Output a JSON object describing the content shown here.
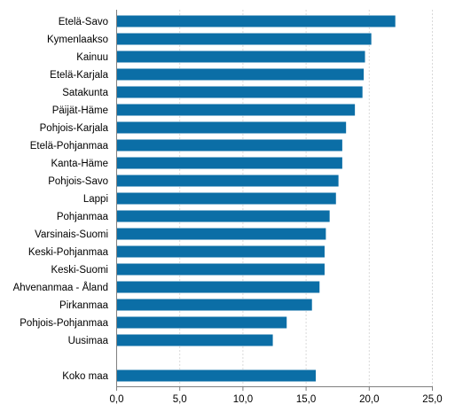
{
  "chart_data": {
    "type": "bar",
    "orientation": "horizontal",
    "categories": [
      "Etelä-Savo",
      "Kymenlaakso",
      "Kainuu",
      "Etelä-Karjala",
      "Satakunta",
      "Päijät-Häme",
      "Pohjois-Karjala",
      "Etelä-Pohjanmaa",
      "Kanta-Häme",
      "Pohjois-Savo",
      "Lappi",
      "Pohjanmaa",
      "Varsinais-Suomi",
      "Keski-Pohjanmaa",
      "Keski-Suomi",
      "Ahvenanmaa - Åland",
      "Pirkanmaa",
      "Pohjois-Pohjanmaa",
      "Uusimaa",
      "",
      "Koko maa"
    ],
    "values": [
      22.1,
      20.2,
      19.7,
      19.6,
      19.5,
      18.9,
      18.2,
      17.9,
      17.9,
      17.6,
      17.4,
      16.9,
      16.6,
      16.5,
      16.5,
      16.1,
      15.5,
      13.5,
      12.4,
      null,
      15.8
    ],
    "xlim": [
      0,
      25
    ],
    "xticks": [
      "0,0",
      "5,0",
      "10,0",
      "15,0",
      "20,0",
      "25,0"
    ],
    "xtick_values": [
      0,
      5,
      10,
      15,
      20,
      25
    ],
    "title": "",
    "xlabel": "",
    "ylabel": "",
    "grid": "vertical",
    "legend": "none",
    "colors": {
      "bar": "#0b6ea6",
      "grid": "#d9d9d9",
      "axis": "#7f7f7f"
    }
  }
}
